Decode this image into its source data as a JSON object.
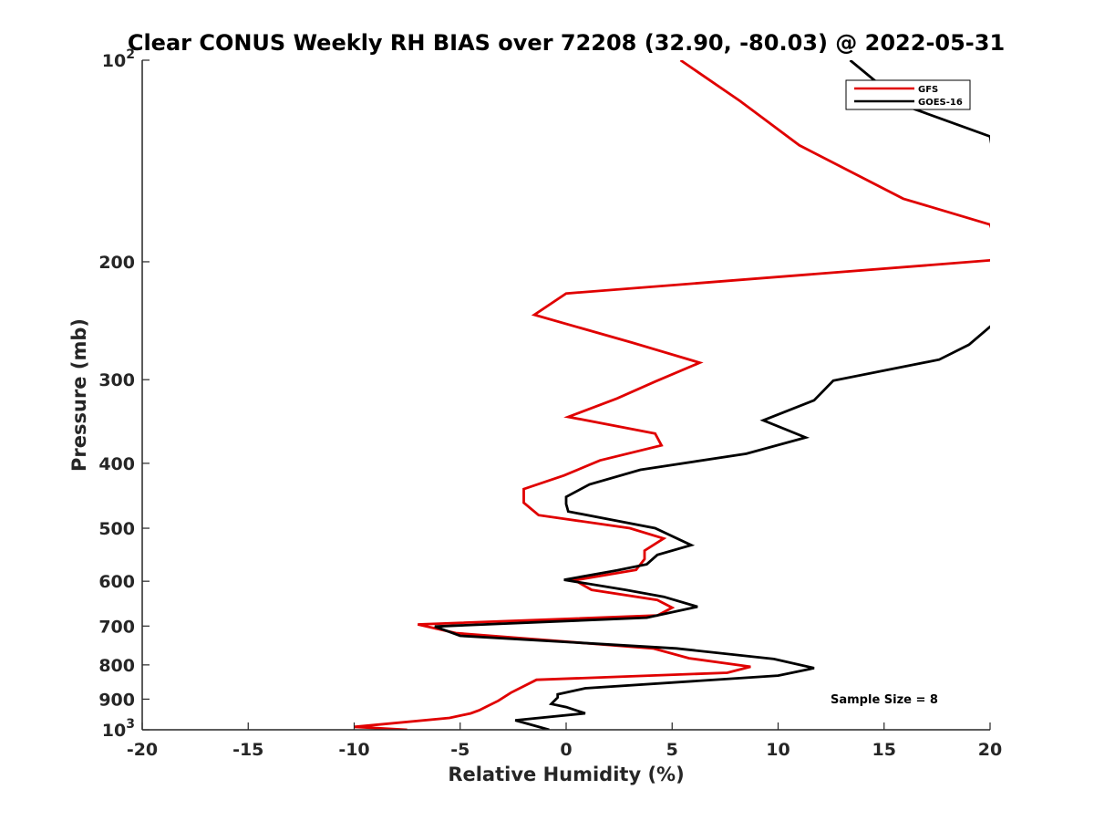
{
  "chart_data": {
    "type": "line",
    "title": "Clear CONUS Weekly RH BIAS over 72208 (32.90, -80.03) @ 2022-05-31",
    "xlabel": "Relative Humidity (%)",
    "ylabel": "Pressure (mb)",
    "xlim": [
      -20,
      20
    ],
    "ylim": [
      100,
      1000
    ],
    "y_scale": "log",
    "y_reversed": true,
    "grid": false,
    "legend_position": "top-right",
    "x_ticks": [
      "-20",
      "-15",
      "-10",
      "-5",
      "0",
      "5",
      "10",
      "15",
      "20"
    ],
    "y_ticks": [
      {
        "value": 100,
        "base": "10",
        "exp": "2"
      },
      {
        "value": 200,
        "text": "200"
      },
      {
        "value": 300,
        "text": "300"
      },
      {
        "value": 400,
        "text": "400"
      },
      {
        "value": 500,
        "text": "500"
      },
      {
        "value": 600,
        "text": "600"
      },
      {
        "value": 700,
        "text": "700"
      },
      {
        "value": 800,
        "text": "800"
      },
      {
        "value": 900,
        "text": "900"
      },
      {
        "value": 1000,
        "base": "10",
        "exp": "3"
      }
    ],
    "annotation": "Sample Size = 8",
    "series": [
      {
        "name": "GFS",
        "color": "#e00000",
        "points": [
          [
            5.4,
            100
          ],
          [
            8.2,
            115
          ],
          [
            11.0,
            134
          ],
          [
            15.9,
            161
          ],
          [
            20.0,
            176
          ],
          [
            20.5,
            195
          ],
          [
            20.0,
            199
          ],
          [
            0.0,
            223
          ],
          [
            -1.5,
            240
          ],
          [
            3.1,
            264
          ],
          [
            6.3,
            283
          ],
          [
            4.2,
            302
          ],
          [
            2.4,
            320
          ],
          [
            0.1,
            341
          ],
          [
            4.2,
            361
          ],
          [
            4.5,
            376
          ],
          [
            1.6,
            396
          ],
          [
            -0.1,
            417
          ],
          [
            -2.0,
            437
          ],
          [
            -2.0,
            458
          ],
          [
            -1.3,
            478
          ],
          [
            3.0,
            500
          ],
          [
            4.6,
            518
          ],
          [
            3.7,
            540
          ],
          [
            3.7,
            556
          ],
          [
            3.3,
            577
          ],
          [
            0.4,
            598
          ],
          [
            1.2,
            618
          ],
          [
            4.3,
            640
          ],
          [
            5.0,
            657
          ],
          [
            4.3,
            675
          ],
          [
            -7.0,
            696
          ],
          [
            -5.2,
            717
          ],
          [
            4.1,
            756
          ],
          [
            5.8,
            782
          ],
          [
            8.7,
            805
          ],
          [
            7.6,
            822
          ],
          [
            -1.4,
            842
          ],
          [
            -2.6,
            880
          ],
          [
            -3.2,
            905
          ],
          [
            -3.8,
            925
          ],
          [
            -4.1,
            935
          ],
          [
            -4.5,
            945
          ],
          [
            -5.5,
            960
          ],
          [
            -10.0,
            990
          ],
          [
            -7.5,
            1000
          ]
        ]
      },
      {
        "name": "GOES-16",
        "color": "#000000",
        "points": [
          [
            13.4,
            100
          ],
          [
            16.0,
            117
          ],
          [
            20.0,
            130
          ],
          [
            20.5,
            160
          ],
          [
            21.0,
            240
          ],
          [
            20.0,
            250
          ],
          [
            19.0,
            266
          ],
          [
            17.6,
            280
          ],
          [
            12.6,
            301
          ],
          [
            11.7,
            322
          ],
          [
            9.3,
            345
          ],
          [
            11.3,
            366
          ],
          [
            8.5,
            387
          ],
          [
            3.5,
            409
          ],
          [
            1.1,
            430
          ],
          [
            0.0,
            449
          ],
          [
            0.0,
            460
          ],
          [
            0.1,
            472
          ],
          [
            4.2,
            500
          ],
          [
            5.9,
            530
          ],
          [
            4.3,
            548
          ],
          [
            3.8,
            566
          ],
          [
            2.4,
            578
          ],
          [
            -0.1,
            597
          ],
          [
            2.8,
            618
          ],
          [
            4.6,
            633
          ],
          [
            6.2,
            655
          ],
          [
            3.8,
            680
          ],
          [
            -6.2,
            701
          ],
          [
            -5.0,
            724
          ],
          [
            5.2,
            756
          ],
          [
            9.8,
            784
          ],
          [
            11.7,
            809
          ],
          [
            10.0,
            830
          ],
          [
            0.9,
            867
          ],
          [
            -0.4,
            885
          ],
          [
            -0.4,
            895
          ],
          [
            -0.7,
            915
          ],
          [
            0.0,
            925
          ],
          [
            0.9,
            945
          ],
          [
            -2.4,
            968
          ],
          [
            -0.8,
            1000
          ]
        ]
      }
    ]
  }
}
